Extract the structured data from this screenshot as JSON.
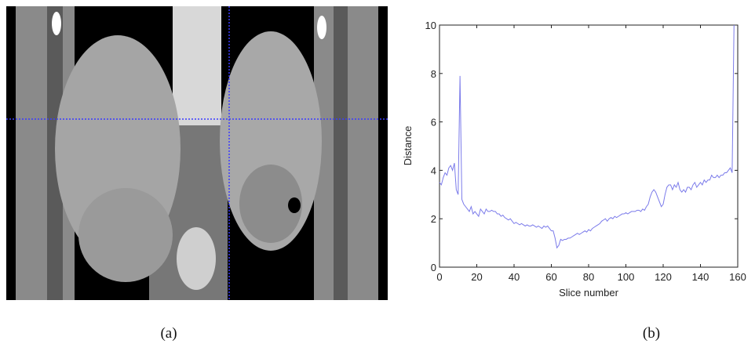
{
  "chart_data": {
    "type": "line",
    "xlabel": "Slice number",
    "ylabel": "Distance",
    "xlim": [
      0,
      160
    ],
    "ylim": [
      0,
      10
    ],
    "xticks": [
      0,
      20,
      40,
      60,
      80,
      100,
      120,
      140,
      160
    ],
    "yticks": [
      0,
      2,
      4,
      6,
      8,
      10
    ],
    "color": "#7b7bea",
    "x": [
      0,
      1,
      2,
      3,
      4,
      5,
      6,
      7,
      8,
      9,
      10,
      11,
      12,
      13,
      14,
      15,
      16,
      17,
      18,
      19,
      20,
      21,
      22,
      23,
      24,
      25,
      26,
      27,
      28,
      29,
      30,
      31,
      32,
      33,
      34,
      35,
      36,
      37,
      38,
      39,
      40,
      41,
      42,
      43,
      44,
      45,
      46,
      47,
      48,
      49,
      50,
      51,
      52,
      53,
      54,
      55,
      56,
      57,
      58,
      59,
      60,
      61,
      62,
      63,
      64,
      65,
      66,
      67,
      68,
      69,
      70,
      71,
      72,
      73,
      74,
      75,
      76,
      77,
      78,
      79,
      80,
      81,
      82,
      83,
      84,
      85,
      86,
      87,
      88,
      89,
      90,
      91,
      92,
      93,
      94,
      95,
      96,
      97,
      98,
      99,
      100,
      101,
      102,
      103,
      104,
      105,
      106,
      107,
      108,
      109,
      110,
      111,
      112,
      113,
      114,
      115,
      116,
      117,
      118,
      119,
      120,
      121,
      122,
      123,
      124,
      125,
      126,
      127,
      128,
      129,
      130,
      131,
      132,
      133,
      134,
      135,
      136,
      137,
      138,
      139,
      140,
      141,
      142,
      143,
      144,
      145,
      146,
      147,
      148,
      149,
      150,
      151,
      152,
      153,
      154,
      155,
      156,
      157,
      158
    ],
    "values": [
      3.5,
      3.4,
      3.7,
      3.9,
      3.8,
      4.1,
      4.2,
      4.0,
      4.3,
      3.2,
      3.0,
      7.9,
      2.8,
      2.6,
      2.5,
      2.4,
      2.3,
      2.5,
      2.2,
      2.3,
      2.2,
      2.1,
      2.4,
      2.3,
      2.2,
      2.4,
      2.3,
      2.3,
      2.35,
      2.3,
      2.3,
      2.2,
      2.2,
      2.1,
      2.15,
      2.05,
      2.0,
      1.95,
      2.0,
      1.9,
      1.8,
      1.85,
      1.8,
      1.75,
      1.8,
      1.75,
      1.7,
      1.75,
      1.7,
      1.7,
      1.75,
      1.7,
      1.65,
      1.7,
      1.65,
      1.6,
      1.7,
      1.65,
      1.7,
      1.6,
      1.5,
      1.5,
      1.2,
      0.8,
      0.9,
      1.15,
      1.1,
      1.15,
      1.15,
      1.2,
      1.2,
      1.25,
      1.3,
      1.35,
      1.4,
      1.35,
      1.4,
      1.45,
      1.5,
      1.45,
      1.55,
      1.5,
      1.6,
      1.65,
      1.7,
      1.75,
      1.8,
      1.9,
      1.95,
      2.0,
      1.9,
      2.0,
      2.05,
      2.0,
      2.1,
      2.05,
      2.1,
      2.15,
      2.2,
      2.2,
      2.25,
      2.2,
      2.25,
      2.3,
      2.3,
      2.3,
      2.35,
      2.35,
      2.3,
      2.4,
      2.35,
      2.5,
      2.6,
      2.9,
      3.1,
      3.2,
      3.1,
      2.9,
      2.7,
      2.5,
      2.6,
      3.0,
      3.3,
      3.4,
      3.4,
      3.2,
      3.4,
      3.3,
      3.5,
      3.2,
      3.1,
      3.2,
      3.1,
      3.3,
      3.3,
      3.2,
      3.4,
      3.5,
      3.3,
      3.4,
      3.5,
      3.4,
      3.6,
      3.5,
      3.6,
      3.6,
      3.8,
      3.7,
      3.7,
      3.8,
      3.7,
      3.8,
      3.8,
      3.9,
      3.9,
      4.0,
      4.1,
      3.9,
      10
    ]
  },
  "captions": [
    "(a)",
    "(b)"
  ]
}
